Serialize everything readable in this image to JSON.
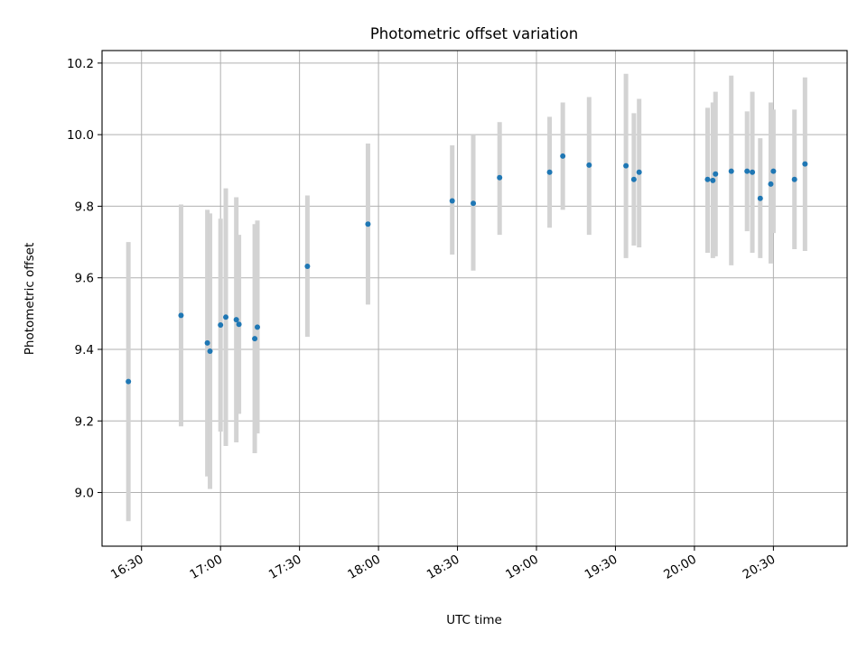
{
  "chart_data": {
    "type": "scatter",
    "title": "Photometric offset variation",
    "xlabel": "UTC time",
    "ylabel": "Photometric offset",
    "x_unit": "UTC time",
    "x_ticks": [
      "16:30",
      "17:00",
      "17:30",
      "18:00",
      "18:30",
      "19:00",
      "19:30",
      "20:00",
      "20:30"
    ],
    "y_ticks": [
      "9.0",
      "9.2",
      "9.4",
      "9.6",
      "9.8",
      "10.0",
      "10.2"
    ],
    "xlim": [
      "16:15",
      "20:58"
    ],
    "ylim": [
      8.85,
      10.235
    ],
    "grid": true,
    "series": [
      {
        "marker_color": "#1f77b4",
        "errorbar_color": "#d3d3d3",
        "points": [
          {
            "x": "16:25",
            "y": 9.31,
            "ylow": 8.92,
            "yhigh": 9.7
          },
          {
            "x": "16:45",
            "y": 9.495,
            "ylow": 9.185,
            "yhigh": 9.805
          },
          {
            "x": "16:55",
            "y": 9.418,
            "ylow": 9.045,
            "yhigh": 9.79
          },
          {
            "x": "16:56",
            "y": 9.395,
            "ylow": 9.01,
            "yhigh": 9.78
          },
          {
            "x": "17:00",
            "y": 9.468,
            "ylow": 9.17,
            "yhigh": 9.765
          },
          {
            "x": "17:02",
            "y": 9.49,
            "ylow": 9.13,
            "yhigh": 9.85
          },
          {
            "x": "17:06",
            "y": 9.483,
            "ylow": 9.14,
            "yhigh": 9.825
          },
          {
            "x": "17:07",
            "y": 9.47,
            "ylow": 9.22,
            "yhigh": 9.72
          },
          {
            "x": "17:13",
            "y": 9.43,
            "ylow": 9.11,
            "yhigh": 9.75
          },
          {
            "x": "17:14",
            "y": 9.462,
            "ylow": 9.165,
            "yhigh": 9.76
          },
          {
            "x": "17:33",
            "y": 9.632,
            "ylow": 9.435,
            "yhigh": 9.83
          },
          {
            "x": "17:56",
            "y": 9.75,
            "ylow": 9.525,
            "yhigh": 9.975
          },
          {
            "x": "18:28",
            "y": 9.815,
            "ylow": 9.665,
            "yhigh": 9.97
          },
          {
            "x": "18:36",
            "y": 9.808,
            "ylow": 9.62,
            "yhigh": 10.0
          },
          {
            "x": "18:46",
            "y": 9.88,
            "ylow": 9.72,
            "yhigh": 10.035
          },
          {
            "x": "19:05",
            "y": 9.895,
            "ylow": 9.74,
            "yhigh": 10.05
          },
          {
            "x": "19:10",
            "y": 9.94,
            "ylow": 9.79,
            "yhigh": 10.09
          },
          {
            "x": "19:20",
            "y": 9.915,
            "ylow": 9.72,
            "yhigh": 10.105
          },
          {
            "x": "19:34",
            "y": 9.913,
            "ylow": 9.655,
            "yhigh": 10.17
          },
          {
            "x": "19:37",
            "y": 9.875,
            "ylow": 9.69,
            "yhigh": 10.06
          },
          {
            "x": "19:39",
            "y": 9.895,
            "ylow": 9.685,
            "yhigh": 10.1
          },
          {
            "x": "20:05",
            "y": 9.875,
            "ylow": 9.67,
            "yhigh": 10.075
          },
          {
            "x": "20:07",
            "y": 9.872,
            "ylow": 9.655,
            "yhigh": 10.09
          },
          {
            "x": "20:08",
            "y": 9.89,
            "ylow": 9.66,
            "yhigh": 10.12
          },
          {
            "x": "20:14",
            "y": 9.898,
            "ylow": 9.635,
            "yhigh": 10.165
          },
          {
            "x": "20:20",
            "y": 9.898,
            "ylow": 9.73,
            "yhigh": 10.065
          },
          {
            "x": "20:22",
            "y": 9.895,
            "ylow": 9.67,
            "yhigh": 10.12
          },
          {
            "x": "20:25",
            "y": 9.822,
            "ylow": 9.655,
            "yhigh": 9.99
          },
          {
            "x": "20:29",
            "y": 9.862,
            "ylow": 9.64,
            "yhigh": 10.09
          },
          {
            "x": "20:30",
            "y": 9.898,
            "ylow": 9.725,
            "yhigh": 10.07
          },
          {
            "x": "20:38",
            "y": 9.875,
            "ylow": 9.68,
            "yhigh": 10.07
          },
          {
            "x": "20:42",
            "y": 9.918,
            "ylow": 9.675,
            "yhigh": 10.16
          }
        ]
      }
    ]
  }
}
